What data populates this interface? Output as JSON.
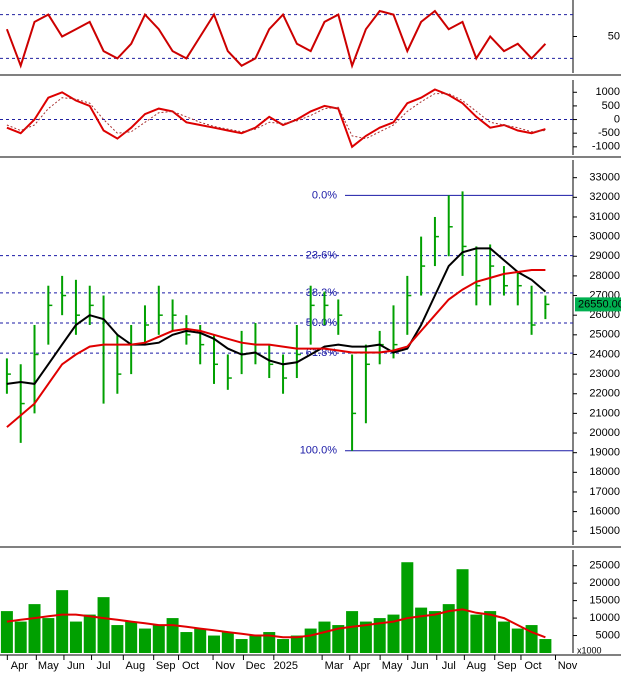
{
  "chart_data": [
    {
      "type": "oscillator",
      "ylim": [
        0,
        100
      ],
      "yticks": [
        50
      ],
      "levels": [
        20,
        80
      ],
      "series": [
        {
          "color": "#cc0000",
          "values": [
            60,
            10,
            70,
            80,
            50,
            60,
            70,
            30,
            20,
            40,
            80,
            60,
            30,
            20,
            50,
            80,
            30,
            10,
            20,
            60,
            80,
            40,
            30,
            70,
            80,
            10,
            60,
            85,
            80,
            30,
            70,
            85,
            60,
            70,
            20,
            50,
            30,
            40,
            20,
            40
          ]
        }
      ]
    },
    {
      "type": "oscillator",
      "ylim": [
        -1300,
        1450
      ],
      "yticks": [
        1000,
        500,
        0,
        -500,
        -1000
      ],
      "levels": [
        0
      ],
      "series": [
        {
          "color": "#dd0000",
          "values": [
            -300,
            -500,
            0,
            800,
            1000,
            700,
            500,
            -400,
            -700,
            -300,
            200,
            400,
            300,
            -100,
            -200,
            -300,
            -400,
            -500,
            -300,
            100,
            -200,
            0,
            300,
            500,
            400,
            -1000,
            -600,
            -300,
            -100,
            600,
            800,
            1100,
            900,
            600,
            100,
            -300,
            -200,
            -400,
            -500,
            -350
          ]
        },
        {
          "color": "#aa3333",
          "dashed": true,
          "values": [
            -200,
            -400,
            -200,
            400,
            800,
            750,
            600,
            0,
            -500,
            -450,
            -100,
            250,
            300,
            100,
            -100,
            -250,
            -350,
            -450,
            -350,
            -100,
            -150,
            -50,
            150,
            400,
            450,
            -600,
            -700,
            -450,
            -200,
            300,
            650,
            950,
            950,
            700,
            300,
            -100,
            -200,
            -300,
            -450,
            -400
          ]
        }
      ]
    },
    {
      "type": "ohlc",
      "ylim": [
        14300,
        33900
      ],
      "yticks": [
        15000,
        16000,
        17000,
        18000,
        19000,
        20000,
        21000,
        22000,
        23000,
        24000,
        25000,
        26000,
        27000,
        28000,
        29000,
        30000,
        31000,
        32000,
        33000
      ],
      "color": "#00a000",
      "high": [
        23800,
        23500,
        25500,
        27500,
        28000,
        27800,
        27500,
        27000,
        25000,
        25500,
        26500,
        27500,
        26800,
        26000,
        25500,
        25000,
        24000,
        25200,
        25600,
        24500,
        24000,
        25500,
        27500,
        27200,
        26800,
        24000,
        24500,
        25200,
        26500,
        28000,
        30000,
        31000,
        32100,
        32300,
        29500,
        29600,
        28500,
        28200,
        27500,
        27000
      ],
      "low": [
        22000,
        19500,
        21000,
        24500,
        26000,
        25000,
        25500,
        21500,
        22000,
        23000,
        24500,
        25000,
        25200,
        24500,
        23500,
        22500,
        22200,
        23000,
        23500,
        22800,
        22000,
        22800,
        24500,
        25500,
        25000,
        19100,
        20500,
        23500,
        23800,
        25000,
        27000,
        28500,
        29000,
        28000,
        26500,
        26500,
        27000,
        26500,
        25000,
        25800
      ],
      "close": [
        23000,
        21500,
        24000,
        26500,
        27000,
        26000,
        26500,
        24500,
        23000,
        24500,
        25500,
        26000,
        26000,
        25000,
        24500,
        23500,
        22800,
        24000,
        24500,
        23500,
        22800,
        24000,
        26500,
        26500,
        26000,
        21000,
        23500,
        24500,
        24500,
        27000,
        28500,
        30000,
        30500,
        29500,
        27500,
        28500,
        27500,
        27500,
        25500,
        26550
      ],
      "series": [
        {
          "color": "#000000",
          "values": [
            22500,
            22600,
            22500,
            23500,
            24500,
            25500,
            26000,
            25800,
            25000,
            24500,
            24500,
            24600,
            25000,
            25200,
            25100,
            24800,
            24300,
            24000,
            24100,
            23700,
            23500,
            23600,
            24000,
            24400,
            24500,
            24400,
            24400,
            24500,
            24100,
            24300,
            25500,
            27000,
            28500,
            29200,
            29400,
            29400,
            28800,
            28200,
            27800,
            27200
          ]
        },
        {
          "color": "#e00000",
          "values": [
            20300,
            20900,
            21500,
            22500,
            23500,
            24000,
            24400,
            24500,
            24500,
            24500,
            24600,
            24900,
            25200,
            25300,
            25200,
            25000,
            24800,
            24600,
            24500,
            24500,
            24400,
            24300,
            24300,
            24300,
            24200,
            24100,
            24100,
            24100,
            24200,
            24400,
            25200,
            26000,
            26800,
            27300,
            27700,
            27900,
            28100,
            28200,
            28300,
            28300
          ]
        }
      ],
      "fib": [
        {
          "label": "0.0%",
          "value": 32100
        },
        {
          "label": "23.6%",
          "value": 29032
        },
        {
          "label": "38.2%",
          "value": 27134
        },
        {
          "label": "50.0%",
          "value": 25600
        },
        {
          "label": "61.8%",
          "value": 24066
        },
        {
          "label": "100.0%",
          "value": 19100
        }
      ],
      "last": {
        "value": 26550,
        "label": "26550.00"
      }
    },
    {
      "type": "volume",
      "ylim": [
        0,
        29500
      ],
      "yticks": [
        5000,
        10000,
        15000,
        20000,
        25000
      ],
      "unit": "x1000",
      "color": "#00a000",
      "values": [
        12000,
        9000,
        14000,
        10000,
        18000,
        9000,
        11000,
        16000,
        8000,
        9000,
        7000,
        8000,
        10000,
        6000,
        7000,
        5000,
        6000,
        4000,
        5000,
        6000,
        4000,
        5000,
        7000,
        9000,
        8000,
        12000,
        9000,
        10000,
        11000,
        26000,
        13000,
        12000,
        14000,
        24000,
        11000,
        12000,
        9000,
        7000,
        8000,
        4000
      ],
      "series": [
        {
          "color": "#e00000",
          "values": [
            9000,
            9500,
            10000,
            10500,
            11000,
            11000,
            10500,
            10000,
            9500,
            9000,
            8500,
            8000,
            8000,
            7500,
            7000,
            6500,
            6000,
            5500,
            5000,
            5000,
            4500,
            4500,
            5000,
            6000,
            7000,
            7500,
            8000,
            8500,
            9000,
            10000,
            10500,
            11000,
            12000,
            12500,
            11500,
            11000,
            10000,
            8000,
            6000,
            4500
          ]
        }
      ],
      "xlim": [
        -0.5,
        41
      ],
      "xticks": [
        {
          "value": 0.9,
          "label": "Apr"
        },
        {
          "value": 3,
          "label": "May"
        },
        {
          "value": 5,
          "label": "Jun"
        },
        {
          "value": 7,
          "label": "Jul"
        },
        {
          "value": 9.3,
          "label": "Aug"
        },
        {
          "value": 11.5,
          "label": "Sep"
        },
        {
          "value": 13.3,
          "label": "Oct"
        },
        {
          "value": 15.8,
          "label": "Nov"
        },
        {
          "value": 18,
          "label": "Dec"
        },
        {
          "value": 20.2,
          "label": "2025"
        },
        {
          "value": 23.7,
          "label": "Mar"
        },
        {
          "value": 25.7,
          "label": "Apr"
        },
        {
          "value": 27.9,
          "label": "May"
        },
        {
          "value": 29.9,
          "label": "Jun"
        },
        {
          "value": 32,
          "label": "Jul"
        },
        {
          "value": 34,
          "label": "Aug"
        },
        {
          "value": 36.2,
          "label": "Sep"
        },
        {
          "value": 38.1,
          "label": "Oct"
        },
        {
          "value": 40.6,
          "label": "Nov"
        }
      ]
    }
  ]
}
